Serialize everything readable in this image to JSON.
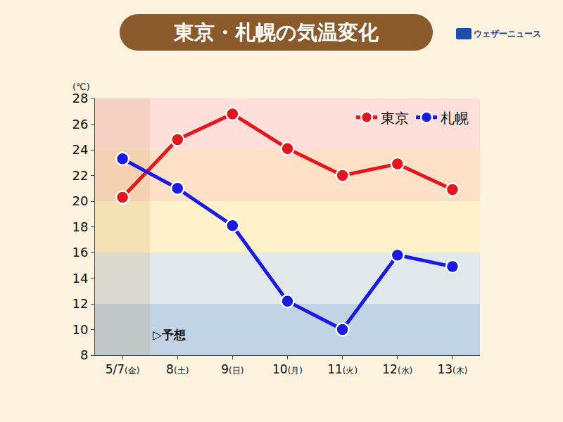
{
  "chart_data": {
    "type": "line",
    "title": "東京・札幌の気温変化",
    "logo": "ウェザーニュース",
    "ylabel": "(℃)",
    "categories": [
      "5/7(金)",
      "8(土)",
      "9(日)",
      "10(月)",
      "11(火)",
      "12(水)",
      "13(木)"
    ],
    "series": [
      {
        "name": "東京",
        "color": "#e8141c",
        "values": [
          20.3,
          24.8,
          26.8,
          24.1,
          22.0,
          22.9,
          20.9
        ]
      },
      {
        "name": "札幌",
        "color": "#1a1ae6",
        "values": [
          23.3,
          21.0,
          18.1,
          12.2,
          10.0,
          15.8,
          14.9
        ]
      }
    ],
    "ylim": [
      8,
      28
    ],
    "yticks": [
      8,
      10,
      12,
      14,
      16,
      18,
      20,
      22,
      24,
      26,
      28
    ],
    "grid": false,
    "legend": "top right",
    "marker": "circle",
    "line_style": "solid",
    "annotations": [
      {
        "text": "▷予想"
      }
    ]
  }
}
